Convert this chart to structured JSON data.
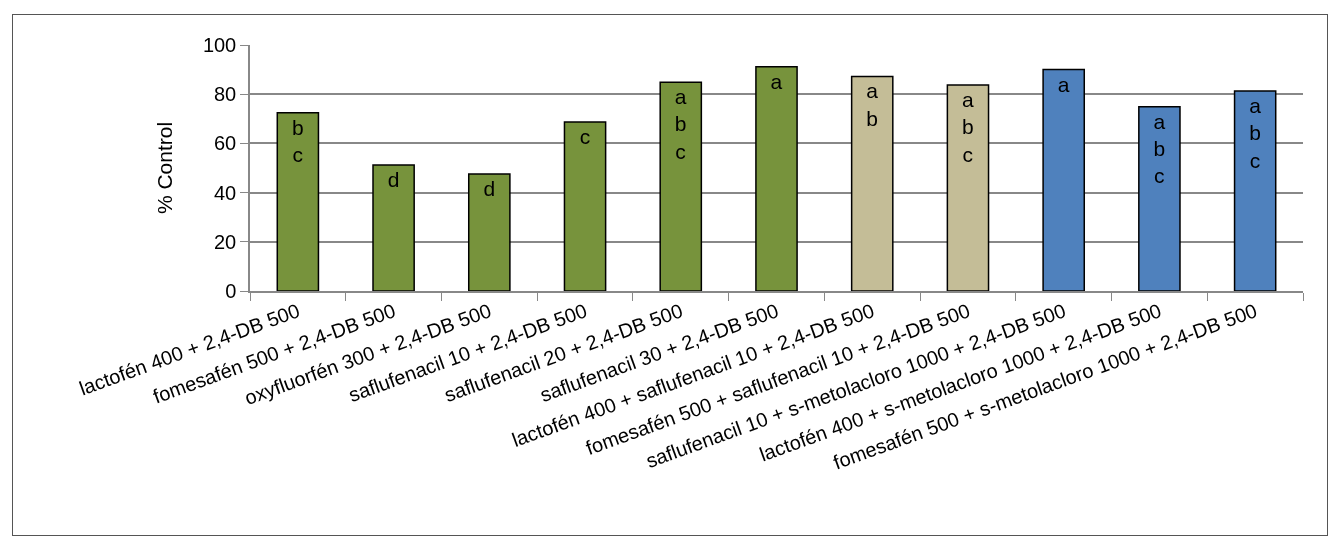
{
  "chart_data": {
    "type": "bar",
    "ylabel": "% Control",
    "categories": [
      "lactofén 400 + 2,4-DB 500",
      "fomesafén 500 + 2,4-DB 500",
      "oxyfluorfén 300 + 2,4-DB 500",
      "saflufenacil 10 + 2,4-DB 500",
      "saflufenacil 20 + 2,4-DB 500",
      "saflufenacil 30 + 2,4-DB 500",
      "lactofén 400 + saflufenacil 10 + 2,4-DB 500",
      "fomesafén 500 + saflufenacil 10 + 2,4-DB 500",
      "saflufenacil 10 + s-metolacloro 1000 + 2,4-DB 500",
      "lactofén 400 + s-metolacloro 1000 + 2,4-DB 500",
      "fomesafén 500 + s-metolacloro 1000 + 2,4-DB 500"
    ],
    "values": [
      72.5,
      51.2,
      47.6,
      68.7,
      84.9,
      91.2,
      87.2,
      83.7,
      90.0,
      74.9,
      81.3
    ],
    "value_labels": [
      "b\nc",
      "d",
      "d",
      "c",
      "a\nb\nc",
      "a",
      "a\nb",
      "a\nb\nc",
      "a",
      "a\nb\nc",
      "a\nb\nc"
    ],
    "colors": [
      "#77933c",
      "#77933c",
      "#77933c",
      "#77933c",
      "#77933c",
      "#77933c",
      "#c4bd97",
      "#c4bd97",
      "#4f81bd",
      "#4f81bd",
      "#4f81bd"
    ],
    "ylim": [
      0,
      100
    ],
    "yticks": [
      0,
      20,
      40,
      60,
      80,
      100
    ],
    "grid": "y",
    "legend": false
  }
}
